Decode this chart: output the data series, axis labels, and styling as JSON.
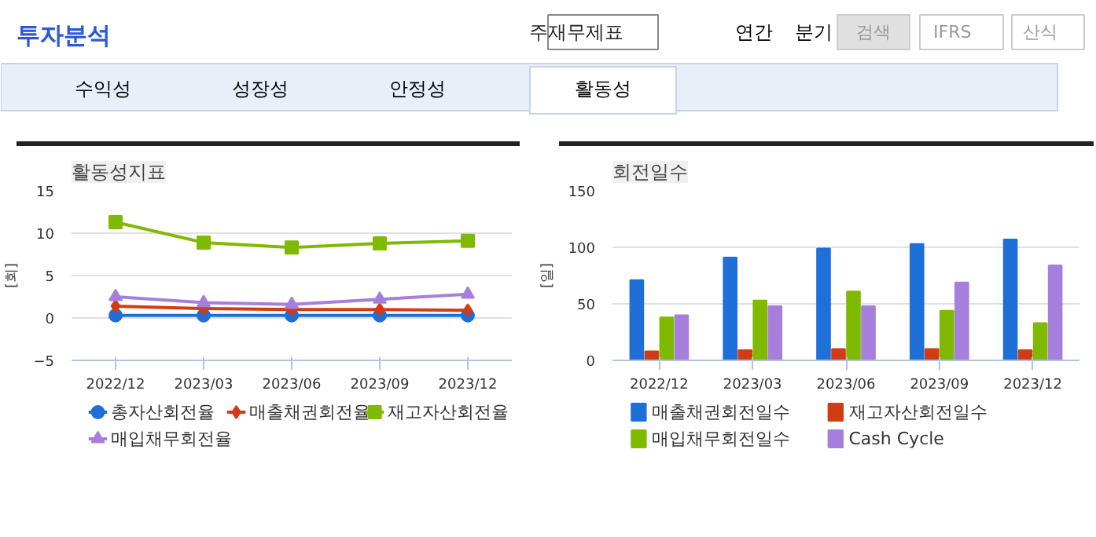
{
  "chart_data": [
    {
      "type": "line",
      "title": "활동성지표",
      "ylabel": "[회]",
      "annotations": [
        "투자분석",
        "주재무제표",
        "연간",
        "분기",
        "검색",
        "IFRS",
        "산식",
        "수익성",
        "성장성",
        "안정성",
        "활동성"
      ],
      "categories": [
        "2022/12",
        "2023/03",
        "2023/06",
        "2023/09",
        "2023/12"
      ],
      "series": [
        {
          "name": "총자산회전율",
          "color": "#1f6fd8",
          "marker": "circle",
          "values": [
            0.3,
            0.3,
            0.3,
            0.3,
            0.3
          ]
        },
        {
          "name": "매출채권회전율",
          "color": "#d23c14",
          "marker": "diamond",
          "values": [
            1.4,
            1.1,
            1.0,
            1.0,
            0.9
          ]
        },
        {
          "name": "재고자산회전율",
          "color": "#7fba00",
          "marker": "square",
          "values": [
            11.3,
            8.9,
            8.3,
            8.8,
            9.1
          ]
        },
        {
          "name": "매입채무회전율",
          "color": "#a67fdc",
          "marker": "triangle",
          "values": [
            2.5,
            1.8,
            1.6,
            2.2,
            2.8
          ]
        }
      ],
      "ylim": [
        -5,
        15
      ],
      "yticks": [
        -5,
        0,
        5,
        10,
        15
      ],
      "grid": "y",
      "legend": "bottom"
    },
    {
      "type": "bar",
      "title": "회전일수",
      "ylabel": "[일]",
      "categories": [
        "2022/12",
        "2023/03",
        "2023/06",
        "2023/09",
        "2023/12"
      ],
      "series": [
        {
          "name": "매출채권회전일수",
          "color": "#1f6fd8",
          "values": [
            71,
            91,
            99,
            103,
            107
          ]
        },
        {
          "name": "재고자산회전일수",
          "color": "#d23c14",
          "values": [
            8,
            9,
            10,
            10,
            9
          ]
        },
        {
          "name": "매입채무회전일수",
          "color": "#7fba00",
          "values": [
            38,
            53,
            61,
            44,
            33
          ]
        },
        {
          "name": "Cash Cycle",
          "color": "#a67fdc",
          "values": [
            40,
            48,
            48,
            69,
            84
          ]
        }
      ],
      "ylim": [
        0,
        150
      ],
      "yticks": [
        0,
        50,
        100,
        150
      ],
      "grid": "y",
      "legend": "bottom"
    }
  ]
}
